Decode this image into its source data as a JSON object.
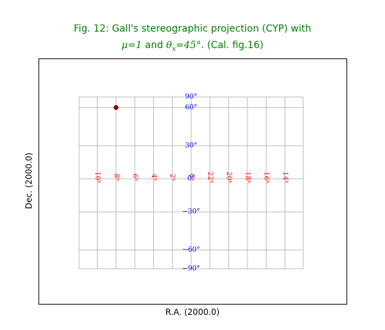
{
  "chart_data": {
    "type": "scatter",
    "title_line1": "Fig. 12: Gall's stereographic projection (CYP) with",
    "title_line2_parts": [
      "μ=1",
      " and ",
      "θ",
      "x",
      "=45°",
      ". (Cal. fig.16)"
    ],
    "xlabel": "R.A. (2000.0)",
    "ylabel": "Dec. (2000.0)",
    "grid": true,
    "ra_ticks": [
      {
        "ra_h": 10,
        "label": "10ʰ"
      },
      {
        "ra_h": 8,
        "label": "8ʰ"
      },
      {
        "ra_h": 6,
        "label": "6ʰ"
      },
      {
        "ra_h": 4,
        "label": "4ʰ"
      },
      {
        "ra_h": 2,
        "label": "2ʰ"
      },
      {
        "ra_h": 0,
        "label": "0ʰ"
      },
      {
        "ra_h": 22,
        "label": "22ʰ"
      },
      {
        "ra_h": 20,
        "label": "20ʰ"
      },
      {
        "ra_h": 18,
        "label": "18ʰ"
      },
      {
        "ra_h": 16,
        "label": "16ʰ"
      },
      {
        "ra_h": 14,
        "label": "14ʰ"
      }
    ],
    "dec_ticks": [
      {
        "dec": 90,
        "label": "90°"
      },
      {
        "dec": 60,
        "label": "60°"
      },
      {
        "dec": 30,
        "label": "30°"
      },
      {
        "dec": 0,
        "label": "0°"
      },
      {
        "dec": -30,
        "label": "−30°"
      },
      {
        "dec": -60,
        "label": "−60°"
      },
      {
        "dec": -90,
        "label": "−90°"
      }
    ],
    "points": [
      {
        "ra_h": 8,
        "dec": 60
      }
    ],
    "colors": {
      "title": "#008000",
      "ra_labels": "#ff0000",
      "dec_labels": "#0000ff",
      "grid": "#bbbbbb",
      "point": "#8b0000"
    }
  }
}
